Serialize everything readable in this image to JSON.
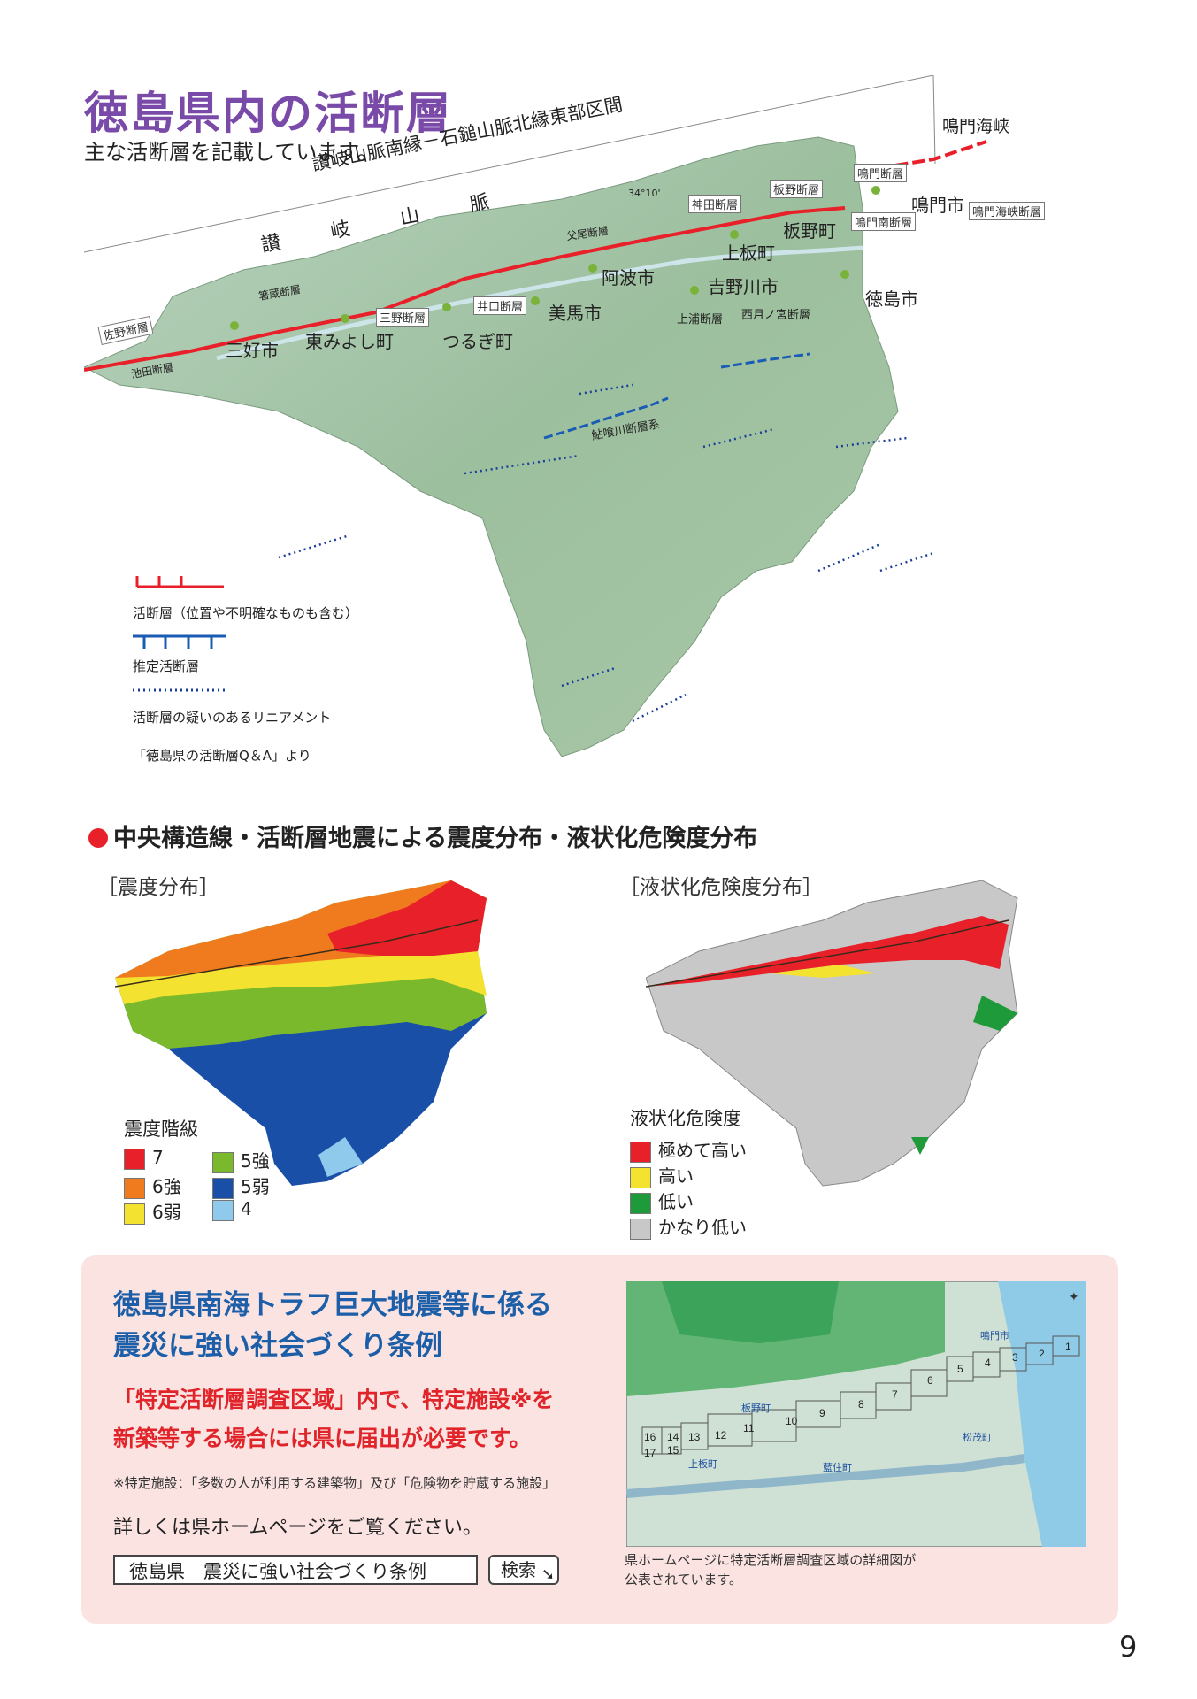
{
  "header": {
    "title": "徳島県内の活断層",
    "subtitle": "主な活断層を記載しています。"
  },
  "main_map": {
    "zone_label": "讃岐山脈南縁－石鎚山脈北縁東部区間",
    "mountain_label": "讃　岐　山　脈",
    "strait_label": "鳴門海峡",
    "coord_label": "34°10'",
    "fault_labels": [
      "佐野断層",
      "池田断層",
      "箸蔵断層",
      "三野断層",
      "井口断層",
      "父尾断層",
      "神田断層",
      "板野断層",
      "鳴門断層",
      "鳴門南断層",
      "鳴門海峡断層",
      "上浦断層",
      "西月ノ宮断層",
      "鮎喰川断層系"
    ],
    "cities": [
      "三好市",
      "東みよし町",
      "つるぎ町",
      "美馬市",
      "阿波市",
      "吉野川市",
      "上板町",
      "板野町",
      "鳴門市",
      "徳島市"
    ],
    "legend": {
      "active": "活断層（位置や不明確なものも含む）",
      "estimated": "推定活断層",
      "lineament": "活断層の疑いのあるリニアメント",
      "source": "「徳島県の活断層Q＆A」より"
    },
    "colors": {
      "active": "#e8202a",
      "estimated": "#1a5bb5",
      "lineament": "#1a3f9a"
    }
  },
  "section": {
    "heading": "中央構造線・活断層地震による震度分布・液状化危険度分布"
  },
  "seismic_map": {
    "title": "［震度分布］",
    "legend_title": "震度階級",
    "levels": [
      {
        "label": "7",
        "color": "#e8202a"
      },
      {
        "label": "6強",
        "color": "#f07a1e"
      },
      {
        "label": "6弱",
        "color": "#f3e330"
      },
      {
        "label": "5強",
        "color": "#7ab82c"
      },
      {
        "label": "5弱",
        "color": "#1a4fa8"
      },
      {
        "label": "4",
        "color": "#8fc9ec"
      }
    ]
  },
  "liquefaction_map": {
    "title": "［液状化危険度分布］",
    "legend_title": "液状化危険度",
    "levels": [
      {
        "label": "極めて高い",
        "color": "#e8202a"
      },
      {
        "label": "高い",
        "color": "#f3e330"
      },
      {
        "label": "低い",
        "color": "#1f9a3a"
      },
      {
        "label": "かなり低い",
        "color": "#c8c8c8"
      }
    ]
  },
  "ordinance": {
    "title_line1": "徳島県南海トラフ巨大地震等に係る",
    "title_line2": "震災に強い社会づくり条例",
    "red_line1": "「特定活断層調査区域」内で、特定施設※を",
    "red_line2": "新築等する場合には県に届出が必要です。",
    "note": "※特定施設：「多数の人が利用する建築物」及び「危険物を貯蔵する施設」",
    "see_more": "詳しくは県ホームページをご覧ください。",
    "search_value": "徳島県　震災に強い社会づくり条例",
    "search_button": "検索",
    "caption_line1": "県ホームページに特定活断層調査区域の詳細図が",
    "caption_line2": "公表されています。",
    "map_places": [
      "鳴門市",
      "板野町",
      "上板町",
      "藍住町",
      "松茂町"
    ],
    "grid_numbers": [
      "1",
      "2",
      "3",
      "4",
      "5",
      "6",
      "7",
      "8",
      "9",
      "10",
      "11",
      "12",
      "13",
      "14",
      "15",
      "16",
      "17"
    ]
  },
  "page": {
    "number": "9"
  }
}
